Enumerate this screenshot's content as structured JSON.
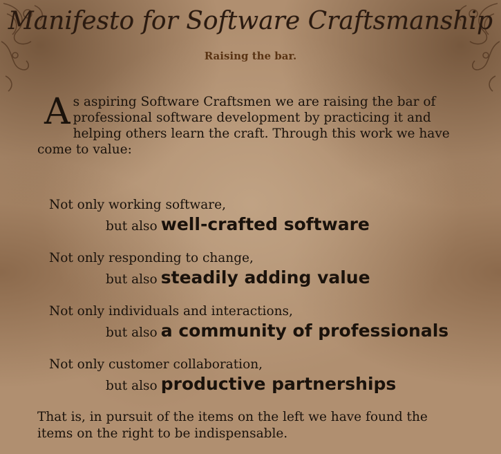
{
  "header": {
    "title": "Manifesto for Software Craftsmanship",
    "tagline": "Raising the bar."
  },
  "intro": {
    "dropcap": "A",
    "text": "s aspiring Software Craftsmen we are raising the bar of professional software development by practicing it and helping others learn the craft. Through this work we have come to value:"
  },
  "values": [
    {
      "not_only": "Not only working software,",
      "but_also": "but also",
      "emphasis": "well-crafted software"
    },
    {
      "not_only": "Not only responding to change,",
      "but_also": "but also",
      "emphasis": "steadily adding value"
    },
    {
      "not_only": "Not only individuals and interactions,",
      "but_also": "but also",
      "emphasis": "a community of professionals"
    },
    {
      "not_only": "Not only customer collaboration,",
      "but_also": "but also",
      "emphasis": "productive partnerships"
    }
  ],
  "closing": "That is, in pursuit of the items on the left we have found the items on the right to be indispensable.",
  "colors": {
    "parchment": "#b08f70",
    "text": "#1a120b",
    "tagline": "#5a3414"
  }
}
